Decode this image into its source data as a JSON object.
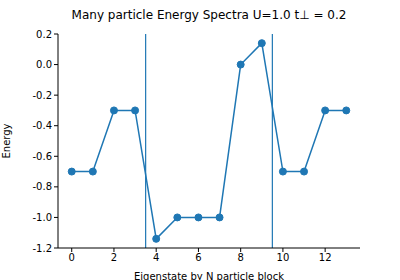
{
  "chart_data": {
    "type": "line",
    "title": "Many particle Energy Spectra U=1.0 t⊥ = 0.2",
    "x_label": "Eigenstate by N particle block",
    "y_label": "Energy",
    "x": [
      0,
      1,
      2,
      3,
      4,
      5,
      6,
      7,
      8,
      9,
      10,
      11,
      12,
      13
    ],
    "values": [
      -0.7,
      -0.7,
      -0.3,
      -0.3,
      -1.14,
      -1.0,
      -1.0,
      -1.0,
      0.0,
      0.14,
      -0.7,
      -0.7,
      -0.3,
      -0.3
    ],
    "vlines": [
      3.5,
      9.5
    ],
    "color": "#1f77b4",
    "marker": "circle",
    "line_style": "solid",
    "xlim": [
      -0.65,
      13.65
    ],
    "ylim": [
      -1.2,
      0.2
    ],
    "xticks": [
      0,
      2,
      4,
      6,
      8,
      10,
      12
    ],
    "yticks": [
      -1.2,
      {
        "value": -1,
        "label": "-1.0"
      },
      -0.8,
      -0.6,
      -0.4,
      -0.2,
      {
        "value": 0,
        "label": "0.0"
      },
      0.2
    ],
    "grid": false
  }
}
